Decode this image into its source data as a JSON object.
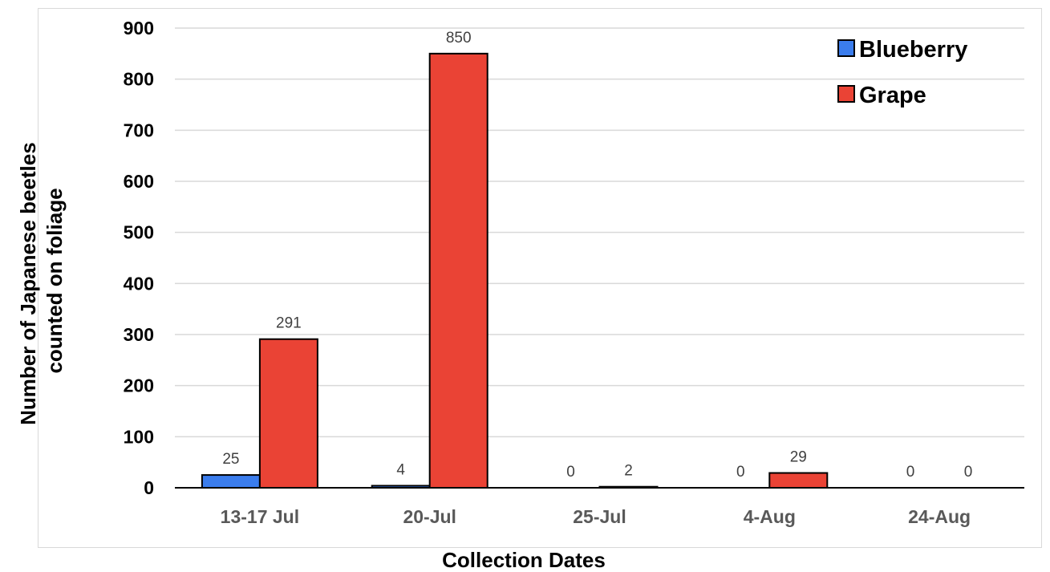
{
  "chart_data": {
    "type": "bar",
    "categories": [
      "13-17 Jul",
      "20-Jul",
      "25-Jul",
      "4-Aug",
      "24-Aug"
    ],
    "series": [
      {
        "name": "Blueberry",
        "color": "#3b7ded",
        "values": [
          25,
          4,
          0,
          0,
          0
        ]
      },
      {
        "name": "Grape",
        "color": "#ea4335",
        "values": [
          291,
          850,
          2,
          29,
          0
        ]
      }
    ],
    "title": "",
    "xlabel": "Collection Dates",
    "ylabel_lines": [
      "Number of Japanese beetles",
      "counted on foliage"
    ],
    "ylim": [
      0,
      900
    ],
    "yticks": [
      0,
      100,
      200,
      300,
      400,
      500,
      600,
      700,
      800,
      900
    ],
    "grid": true,
    "legend_position": "top-right",
    "data_labels": true
  }
}
